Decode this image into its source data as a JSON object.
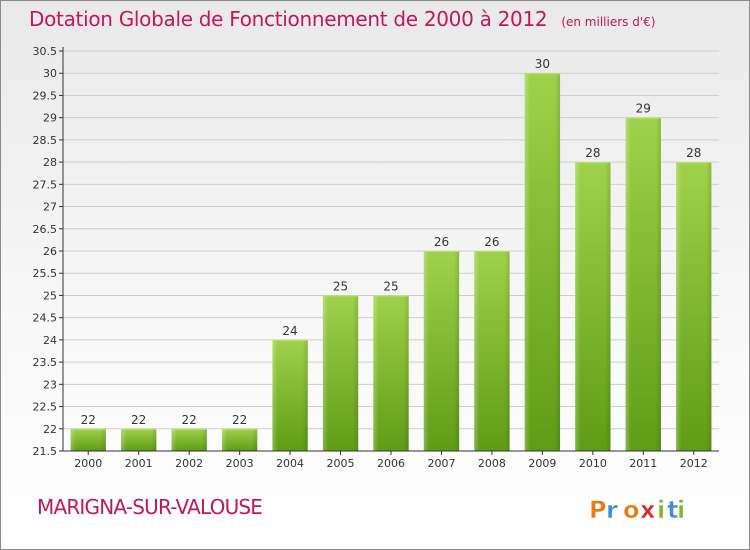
{
  "header": {
    "title": "Dotation Globale de Fonctionnement de 2000 à 2012",
    "unit": "(en milliers d'€)"
  },
  "footer": {
    "commune": "MARIGNA-SUR-VALOUSE",
    "logo_text": "Proxiti",
    "logo_colors": [
      "#e8791a",
      "#3d8fd6",
      "#e8791a",
      "#d92b2b",
      "#7cb82f",
      "#3d8fd6",
      "#7cb82f"
    ]
  },
  "colors": {
    "title": "#c2185b",
    "bar_light": "#9fd24a",
    "bar_dark": "#5f9c16",
    "grid": "#cfcfcf",
    "axis": "#333333"
  },
  "chart_data": {
    "type": "bar",
    "categories": [
      "2000",
      "2001",
      "2002",
      "2003",
      "2004",
      "2005",
      "2006",
      "2007",
      "2008",
      "2009",
      "2010",
      "2011",
      "2012"
    ],
    "values": [
      22,
      22,
      22,
      22,
      24,
      25,
      25,
      26,
      26,
      30,
      28,
      29,
      28
    ],
    "ylim": [
      21.5,
      30.5
    ],
    "yticks": [
      "21.5",
      "22",
      "22.5",
      "23",
      "23.5",
      "24",
      "24.5",
      "25",
      "25.5",
      "26",
      "26.5",
      "27",
      "27.5",
      "28",
      "28.5",
      "29",
      "29.5",
      "30",
      "30.5"
    ],
    "grid": true,
    "xlabel": "",
    "ylabel": ""
  }
}
